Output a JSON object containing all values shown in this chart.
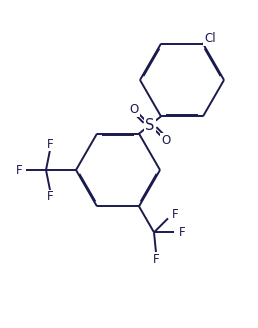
{
  "background_color": "#ffffff",
  "line_color": "#1a1a4e",
  "line_width": 1.4,
  "dbo": 0.055,
  "font_size": 8.5,
  "figsize": [
    2.58,
    3.28
  ],
  "dpi": 100,
  "xlim": [
    0,
    258
  ],
  "ylim": [
    0,
    328
  ]
}
